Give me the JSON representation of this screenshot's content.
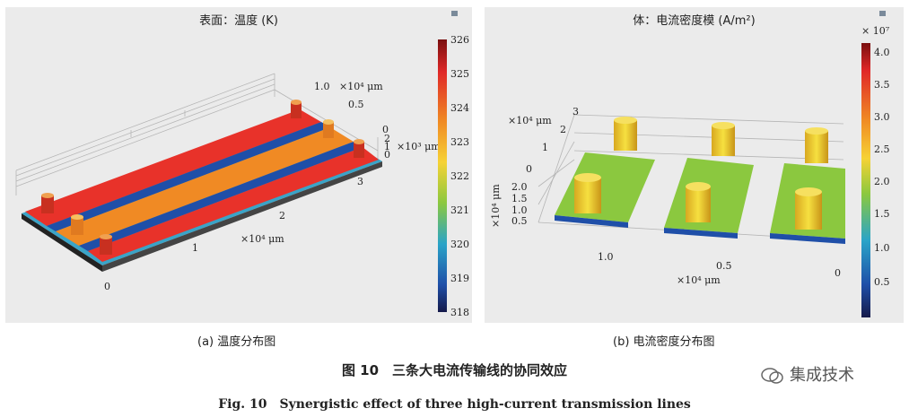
{
  "panel_a": {
    "title": "表面：温度 (K)",
    "caption": "(a) 温度分布图",
    "axis_x_unit": "×10⁴ μm",
    "axis_y_unit": "×10⁴ μm",
    "axis_z_unit": "×10³ μm",
    "x_ticks": [
      "0",
      "1",
      "2",
      "3"
    ],
    "y_ticks": [
      "0",
      "0.5",
      "1.0"
    ],
    "z_ticks": [
      "0",
      "1",
      "2"
    ],
    "colorbar_ticks": [
      "326",
      "325",
      "324",
      "323",
      "322",
      "321",
      "320",
      "319",
      "318"
    ]
  },
  "panel_b": {
    "title": "体：电流密度模 (A/m²)",
    "caption": "(b) 电流密度分布图",
    "colorbar_exponent": "× 10⁷",
    "axis_x_unit": "×10⁴ μm",
    "axis_y_unit": "×10⁴ μm",
    "axis_z_unit": "×10⁴ μm",
    "x_ticks": [
      "1.0",
      "0.5",
      "0"
    ],
    "y_ticks": [
      "0",
      "1",
      "2",
      "3"
    ],
    "z_ticks": [
      "0.5",
      "1.0",
      "1.5",
      "2.0"
    ],
    "colorbar_ticks": [
      "4.0",
      "3.5",
      "3.0",
      "2.5",
      "2.0",
      "1.5",
      "1.0",
      "0.5"
    ]
  },
  "figure": {
    "title_cn": "图 10　三条大电流传输线的协同效应",
    "title_en": "Fig. 10　Synergistic effect of three high-current transmission lines",
    "watermark": "集成技术"
  },
  "colors": {
    "hot": "#e8322a",
    "warm": "#f08a24",
    "cool": "#1f4fa8",
    "field": "#8bc83f",
    "pillar": "#f2d232"
  }
}
